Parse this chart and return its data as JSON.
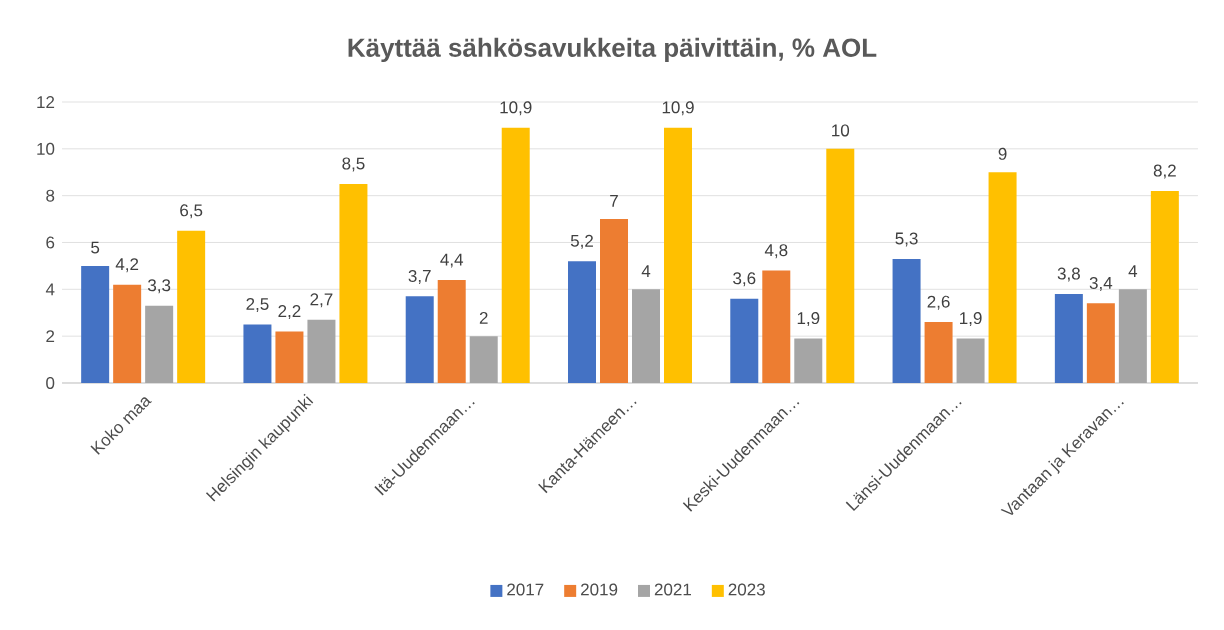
{
  "chart_data": {
    "type": "bar",
    "title": "Käyttää sähkösavukkeita päivittäin, % AOL",
    "categories": [
      "Koko maa",
      "Helsingin kaupunki",
      "Itä-Uudenmaan…",
      "Kanta-Hämeen…",
      "Keski-Uudenmaan…",
      "Länsi-Uudenmaan…",
      "Vantaan ja Keravan…"
    ],
    "series": [
      {
        "name": "2017",
        "color": "#4472c4",
        "values": [
          5,
          2.5,
          3.7,
          5.2,
          3.6,
          5.3,
          3.8
        ],
        "value_labels": [
          "5",
          "2,5",
          "3,7",
          "5,2",
          "3,6",
          "5,3",
          "3,8"
        ]
      },
      {
        "name": "2019",
        "color": "#ed7d31",
        "values": [
          4.2,
          2.2,
          4.4,
          7,
          4.8,
          2.6,
          3.4
        ],
        "value_labels": [
          "4,2",
          "2,2",
          "4,4",
          "7",
          "4,8",
          "2,6",
          "3,4"
        ]
      },
      {
        "name": "2021",
        "color": "#a5a5a5",
        "values": [
          3.3,
          2.7,
          2,
          4,
          1.9,
          1.9,
          4
        ],
        "value_labels": [
          "3,3",
          "2,7",
          "2",
          "4",
          "1,9",
          "1,9",
          "4"
        ]
      },
      {
        "name": "2023",
        "color": "#ffc000",
        "values": [
          6.5,
          8.5,
          10.9,
          10.9,
          10,
          9,
          8.2
        ],
        "value_labels": [
          "6,5",
          "8,5",
          "10,9",
          "10,9",
          "10",
          "9",
          "8,2"
        ]
      }
    ],
    "ylim": [
      0,
      12
    ],
    "yticks": [
      0,
      2,
      4,
      6,
      8,
      10,
      12
    ],
    "grid": "y",
    "legend": "bottom"
  }
}
